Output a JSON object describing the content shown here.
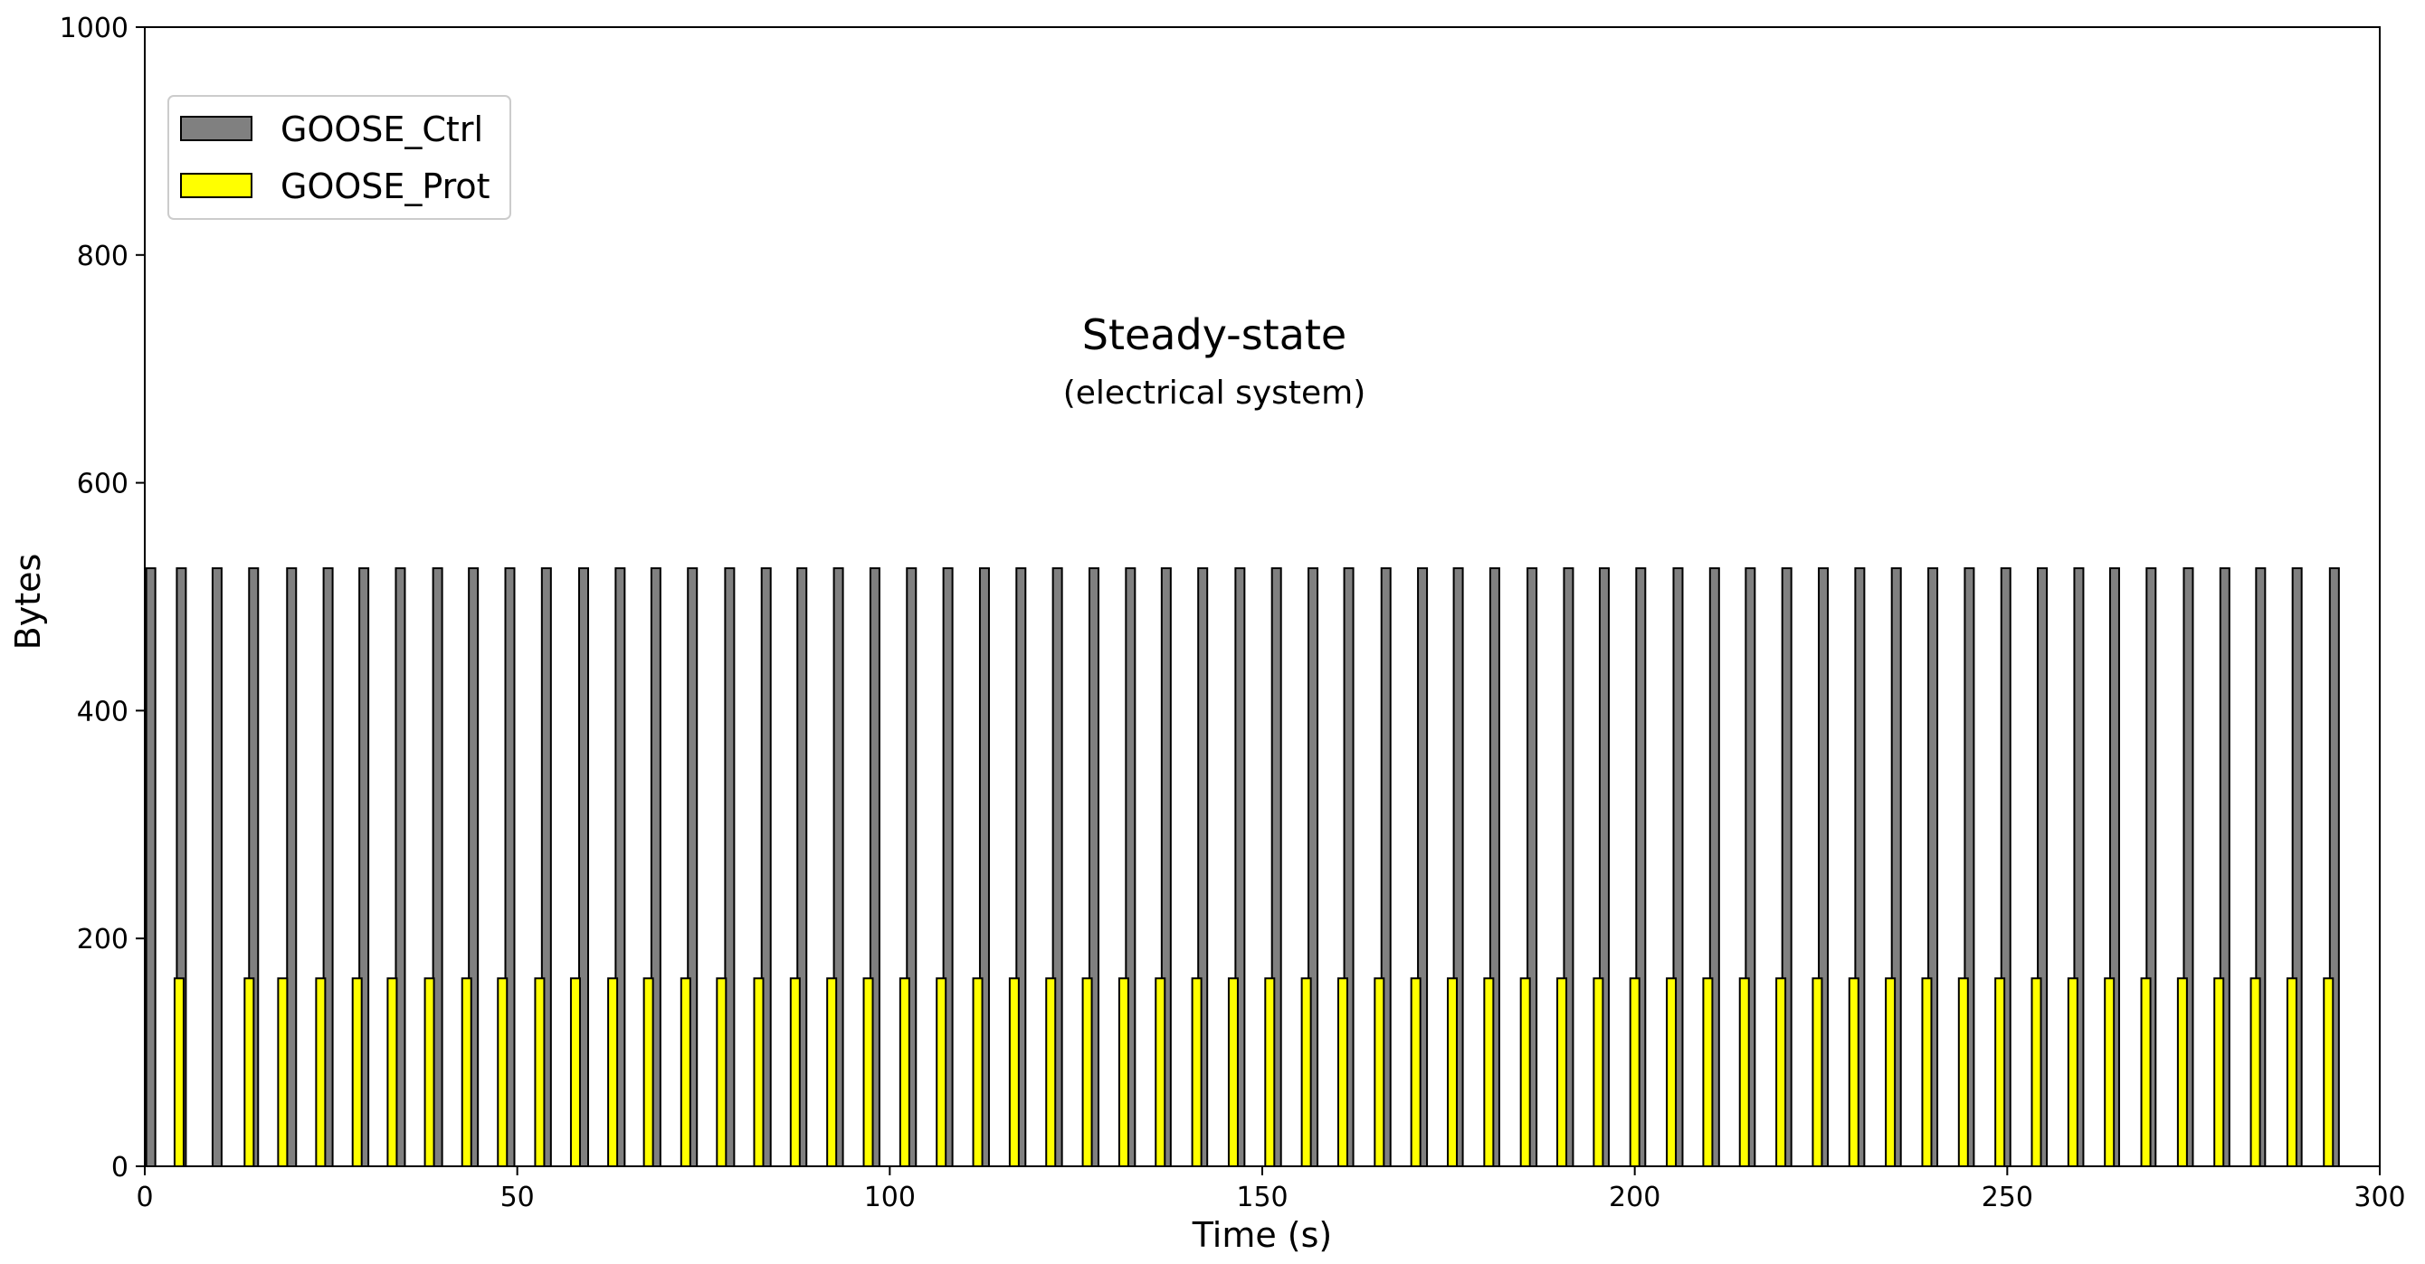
{
  "chart_data": {
    "type": "bar",
    "xlabel": "Time (s)",
    "ylabel": "Bytes",
    "xlim": [
      0,
      300
    ],
    "ylim": [
      0,
      1000
    ],
    "xticks": [
      "0",
      "50",
      "100",
      "150",
      "200",
      "250",
      "300"
    ],
    "yticks": [
      "0",
      "200",
      "400",
      "600",
      "800",
      "1000"
    ],
    "grid": false,
    "legend_position": "top-left",
    "annotation": {
      "title": "Steady-state",
      "subtitle": "(electrical system)"
    },
    "series": [
      {
        "name": "GOOSE_Ctrl",
        "color": "#808080",
        "value": 525,
        "x": [
          0.2,
          4.3,
          9.1,
          14.0,
          19.1,
          24.0,
          28.8,
          33.7,
          38.7,
          43.5,
          48.4,
          53.3,
          58.3,
          63.2,
          68.0,
          72.9,
          77.9,
          82.8,
          87.6,
          92.5,
          97.4,
          102.3,
          107.2,
          112.1,
          117.0,
          121.9,
          126.8,
          131.7,
          136.5,
          141.4,
          146.4,
          151.3,
          156.2,
          161.0,
          166.0,
          170.9,
          175.7,
          180.6,
          185.6,
          190.5,
          195.3,
          200.2,
          205.2,
          210.1,
          214.9,
          219.8,
          224.7,
          229.6,
          234.5,
          239.4,
          244.3,
          249.2,
          254.1,
          259.0,
          263.8,
          268.7,
          273.7,
          278.6,
          283.4,
          288.3,
          293.3
        ]
      },
      {
        "name": "GOOSE_Prot",
        "color": "#ffff00",
        "value": 165,
        "x": [
          4.0,
          13.4,
          17.9,
          23.0,
          27.9,
          32.6,
          37.6,
          42.6,
          47.4,
          52.4,
          57.2,
          62.2,
          67.0,
          72.0,
          76.8,
          81.8,
          86.7,
          91.6,
          96.5,
          101.4,
          106.3,
          111.2,
          116.1,
          121.0,
          125.9,
          130.8,
          135.7,
          140.6,
          145.5,
          150.4,
          155.3,
          160.2,
          165.1,
          170.0,
          174.9,
          179.8,
          184.7,
          189.6,
          194.5,
          199.4,
          204.3,
          209.2,
          214.1,
          219.0,
          223.9,
          228.8,
          233.7,
          238.6,
          243.5,
          248.4,
          253.3,
          258.2,
          263.1,
          268.0,
          272.9,
          277.8,
          282.7,
          287.6,
          292.5
        ]
      }
    ]
  }
}
